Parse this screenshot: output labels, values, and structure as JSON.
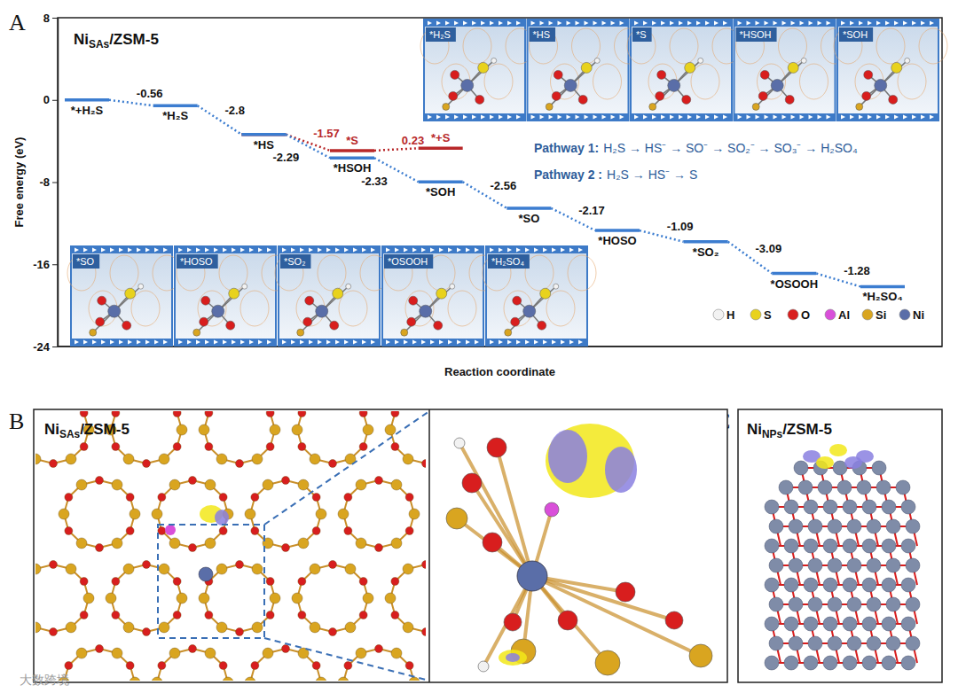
{
  "panel_labels": [
    "A",
    "B",
    "C"
  ],
  "chart_data": {
    "type": "line",
    "title": [
      {
        "text": "Ni"
      },
      {
        "text": "SAs",
        "sub": true
      },
      {
        "text": "/ZSM-5"
      }
    ],
    "y_label": "Free energy (eV)",
    "x_label": "Reaction coordinate",
    "ylim": [
      -24,
      8
    ],
    "yticks": [
      -24,
      -16,
      -8,
      0,
      8
    ],
    "tick_labels": "y",
    "categories": [
      null,
      null,
      null,
      null,
      null,
      null,
      null,
      null,
      null,
      null
    ],
    "series": [
      {
        "color": "#3c7dd0",
        "line_style": "dotted",
        "marker": "level",
        "values": [
          0,
          -0.56,
          -3.36,
          -5.65,
          -7.98,
          -10.54,
          -12.71,
          -13.8,
          -16.89,
          -18.17
        ],
        "point_labels": [
          "*+H₂S",
          "*H₂S",
          "*HS",
          "*HSOH",
          "*SOH",
          "*SO",
          "*HOSO",
          "*SO₂",
          "*OSOOH",
          "*H₂SO₄"
        ],
        "steps": [
          null,
          -0.56,
          -2.8,
          -2.29,
          -2.33,
          -2.56,
          -2.17,
          -1.09,
          -3.09,
          -1.28
        ]
      },
      {
        "color": "#b8282a",
        "line_style": "dotted",
        "marker": "level",
        "values": [
          null,
          null,
          -3.36,
          -4.93,
          -4.7,
          null,
          null,
          null,
          null,
          null
        ],
        "point_labels": [
          null,
          null,
          null,
          "*S",
          "*+S",
          null,
          null,
          null,
          null,
          null
        ],
        "steps": [
          null,
          null,
          null,
          -1.57,
          0.23,
          null,
          null,
          null,
          null,
          null
        ]
      }
    ],
    "pathways": [
      {
        "label": "Pathway 1:",
        "text": "H₂S → HS⁻ → SO⁻ → SO₂⁻ → SO₃⁻ → H₂SO₄"
      },
      {
        "label": "Pathway 2 :",
        "text": "H₂S → HS⁻ → S"
      }
    ],
    "insets": [
      [
        "*H₂S",
        "*HS",
        "*S",
        "*HSOH",
        "*SOH"
      ],
      [
        "*SO",
        "*HOSO",
        "*SO₂",
        "*OSOOH",
        "*H₂SO₄"
      ]
    ],
    "atom_legend": [
      {
        "name": "H",
        "color": "#f2f2f2"
      },
      {
        "name": "S",
        "color": "#e8d21d"
      },
      {
        "name": "O",
        "color": "#d81e1e"
      },
      {
        "name": "Al",
        "color": "#d94fd9"
      },
      {
        "name": "Si",
        "color": "#d9a520"
      },
      {
        "name": "Ni",
        "color": "#5a6ea8"
      }
    ]
  },
  "panel_b": {
    "title": [
      {
        "text": "Ni"
      },
      {
        "text": "SAs",
        "sub": true
      },
      {
        "text": "/ZSM-5"
      }
    ]
  },
  "panel_c": {
    "title": [
      {
        "text": "Ni"
      },
      {
        "text": "NPs",
        "sub": true
      },
      {
        "text": "/ZSM-5"
      }
    ]
  },
  "watermark": "大数跨境"
}
